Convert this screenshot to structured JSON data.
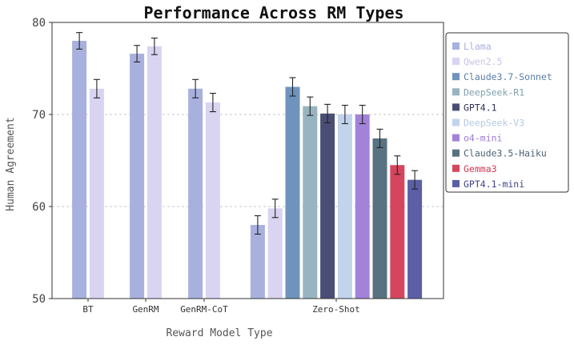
{
  "chart_data": {
    "type": "bar",
    "title": "Performance Across RM Types",
    "xlabel": "Reward Model Type",
    "ylabel": "Human Agreement",
    "ylim": [
      50,
      80
    ],
    "yticks": [
      50,
      60,
      70,
      80
    ],
    "grid": true,
    "legend_position": "top-right",
    "categories": [
      "BT",
      "GenRM",
      "GenRM-CoT",
      "Zero-Shot"
    ],
    "series": [
      {
        "name": "Llama",
        "color": "#a8b0de",
        "legend_text_color": "#a8b0de",
        "values": [
          78.0,
          76.6,
          72.8,
          58.0
        ],
        "errors": [
          0.9,
          0.9,
          1.0,
          1.0
        ]
      },
      {
        "name": "Qwen2.5",
        "color": "#d8d4f1",
        "legend_text_color": "#c9c5ec",
        "values": [
          72.8,
          77.4,
          71.3,
          59.8
        ],
        "errors": [
          1.0,
          0.9,
          1.0,
          1.0
        ]
      },
      {
        "name": "Claude3.7-Sonnet",
        "color": "#6e93bd",
        "legend_text_color": "#5a7ea8",
        "values": [
          null,
          null,
          null,
          73.0
        ],
        "errors": [
          null,
          null,
          null,
          1.0
        ]
      },
      {
        "name": "DeepSeek-R1",
        "color": "#98b4c0",
        "legend_text_color": "#7fa0ae",
        "values": [
          null,
          null,
          null,
          70.9
        ],
        "errors": [
          null,
          null,
          null,
          1.0
        ]
      },
      {
        "name": "GPT4.1",
        "color": "#4a4e75",
        "legend_text_color": "#2f3358",
        "values": [
          null,
          null,
          null,
          70.1
        ],
        "errors": [
          null,
          null,
          null,
          1.0
        ]
      },
      {
        "name": "DeepSeek-V3",
        "color": "#c2d3ec",
        "legend_text_color": "#b4c8e6",
        "values": [
          null,
          null,
          null,
          70.0
        ],
        "errors": [
          null,
          null,
          null,
          1.0
        ]
      },
      {
        "name": "o4-mini",
        "color": "#a283d8",
        "legend_text_color": "#9d7ad6",
        "values": [
          null,
          null,
          null,
          70.0
        ],
        "errors": [
          null,
          null,
          null,
          1.0
        ]
      },
      {
        "name": "Claude3.5-Haiku",
        "color": "#587282",
        "legend_text_color": "#4a6474",
        "values": [
          null,
          null,
          null,
          67.4
        ],
        "errors": [
          null,
          null,
          null,
          1.0
        ]
      },
      {
        "name": "Gemma3",
        "color": "#d5465e",
        "legend_text_color": "#d03a52",
        "values": [
          null,
          null,
          null,
          64.5
        ],
        "errors": [
          null,
          null,
          null,
          1.0
        ]
      },
      {
        "name": "GPT4.1-mini",
        "color": "#5b5fa5",
        "legend_text_color": "#3f438c",
        "values": [
          null,
          null,
          null,
          62.9
        ],
        "errors": [
          null,
          null,
          null,
          1.0
        ]
      }
    ]
  }
}
